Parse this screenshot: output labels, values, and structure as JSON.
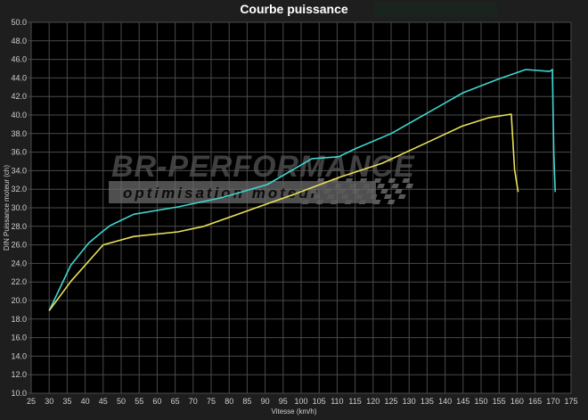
{
  "chart_data": {
    "type": "line",
    "title": "Courbe puissance",
    "xlabel": "Vitesse (km/h)",
    "ylabel": "DIN Puissance moteur (ch)",
    "xlim": [
      25,
      175
    ],
    "ylim": [
      10,
      50
    ],
    "xticks": [
      25,
      30,
      35,
      40,
      45,
      50,
      55,
      60,
      65,
      70,
      75,
      80,
      85,
      90,
      95,
      100,
      105,
      110,
      115,
      120,
      125,
      130,
      135,
      140,
      145,
      150,
      155,
      160,
      165,
      170,
      175
    ],
    "yticks": [
      "10.0",
      "12.0",
      "14.0",
      "16.0",
      "18.0",
      "20.0",
      "22.0",
      "24.0",
      "26.0",
      "28.0",
      "30.0",
      "32.0",
      "34.0",
      "36.0",
      "38.0",
      "40.0",
      "42.0",
      "44.0",
      "46.0",
      "48.0",
      "50.0"
    ],
    "grid": true,
    "background": "#000000",
    "series": [
      {
        "color": "#3fd6d0",
        "x": [
          30,
          36,
          41,
          45,
          47,
          53.5,
          65.8,
          78,
          90.6,
          103,
          110.4,
          115.3,
          125,
          135,
          145,
          155,
          162.4,
          169,
          169.8,
          170.2,
          170.6
        ],
        "y": [
          18.9,
          23.8,
          26.2,
          27.5,
          28.1,
          29.3,
          30.1,
          31.1,
          32.5,
          35.3,
          35.5,
          36.4,
          38,
          40.2,
          42.4,
          43.9,
          44.9,
          44.7,
          44.9,
          36,
          31.7
        ]
      },
      {
        "color": "#e8e05a",
        "x": [
          30,
          36.1,
          45,
          53.5,
          65.8,
          73,
          85.3,
          97.7,
          110,
          122.5,
          134.8,
          144.7,
          152,
          158.4,
          159.3,
          160.3
        ],
        "y": [
          18.9,
          22.1,
          26,
          26.9,
          27.4,
          28,
          29.7,
          31.4,
          33.2,
          34.8,
          37,
          38.8,
          39.7,
          40.1,
          34.1,
          31.7
        ]
      }
    ],
    "watermark": {
      "brand": "BR-Performance",
      "tagline": "optimisation moteur"
    }
  }
}
